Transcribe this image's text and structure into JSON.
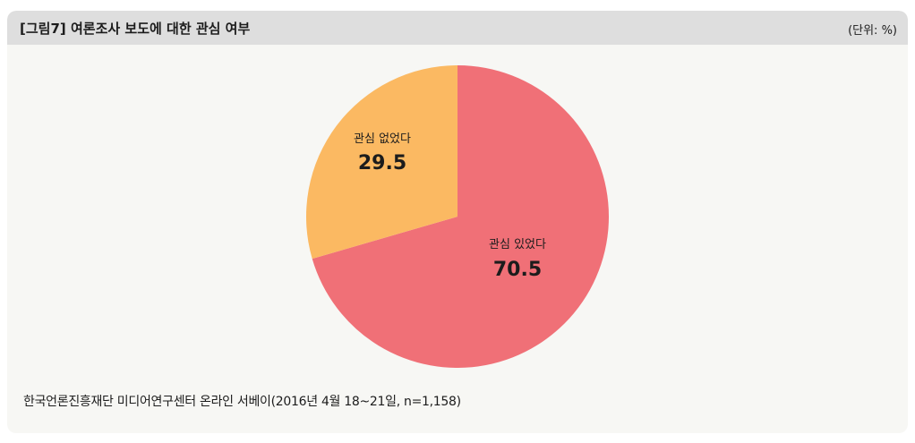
{
  "header": {
    "title": "[그림7]  여론조사 보도에 대한 관심 여부",
    "unit": "(단위: %)"
  },
  "footer": {
    "source": "한국언론진흥재단 미디어연구센터 온라인 서베이(2016년 4월 18~21일, n=1,158)"
  },
  "colors": {
    "panel_bg": "#f7f7f4",
    "header_bg": "#dedede",
    "slice_interested": "#f07077",
    "slice_not_interested": "#fbb962"
  },
  "chart_data": {
    "type": "pie",
    "title": "[그림7]  여론조사 보도에 대한 관심 여부",
    "unit": "(단위: %)",
    "categories": [
      "관심 있었다",
      "관심 없었다"
    ],
    "values": [
      70.5,
      29.5
    ],
    "value_labels": [
      "70.5",
      "29.5"
    ],
    "colors": [
      "#f07077",
      "#fbb962"
    ],
    "start": "12 o'clock",
    "direction": "clockwise",
    "legend": "none"
  }
}
